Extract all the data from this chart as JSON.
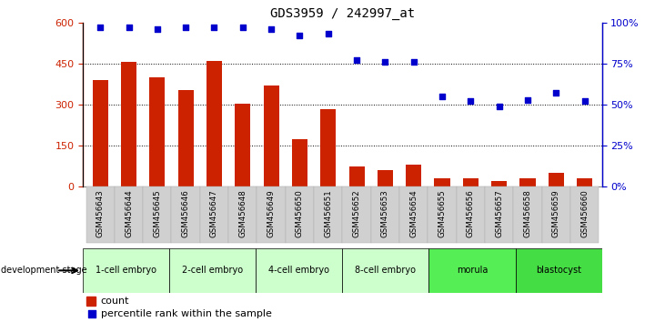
{
  "title": "GDS3959 / 242997_at",
  "samples": [
    "GSM456643",
    "GSM456644",
    "GSM456645",
    "GSM456646",
    "GSM456647",
    "GSM456648",
    "GSM456649",
    "GSM456650",
    "GSM456651",
    "GSM456652",
    "GSM456653",
    "GSM456654",
    "GSM456655",
    "GSM456656",
    "GSM456657",
    "GSM456658",
    "GSM456659",
    "GSM456660"
  ],
  "counts": [
    390,
    455,
    400,
    355,
    460,
    305,
    370,
    175,
    285,
    75,
    60,
    80,
    30,
    30,
    20,
    30,
    50,
    30
  ],
  "percentiles": [
    97,
    97,
    96,
    97,
    97,
    97,
    96,
    92,
    93,
    77,
    76,
    76,
    55,
    52,
    49,
    53,
    57,
    52
  ],
  "bar_color": "#cc2200",
  "dot_color": "#0000cc",
  "ylim_left": [
    0,
    600
  ],
  "ylim_right": [
    0,
    100
  ],
  "yticks_left": [
    0,
    150,
    300,
    450,
    600
  ],
  "yticks_right": [
    0,
    25,
    50,
    75,
    100
  ],
  "ytick_labels_left": [
    "0",
    "150",
    "300",
    "450",
    "600"
  ],
  "ytick_labels_right": [
    "0%",
    "25%",
    "50%",
    "75%",
    "100%"
  ],
  "stages": [
    {
      "label": "1-cell embryo",
      "start": 0,
      "end": 3
    },
    {
      "label": "2-cell embryo",
      "start": 3,
      "end": 6
    },
    {
      "label": "4-cell embryo",
      "start": 6,
      "end": 9
    },
    {
      "label": "8-cell embryo",
      "start": 9,
      "end": 12
    },
    {
      "label": "morula",
      "start": 12,
      "end": 15
    },
    {
      "label": "blastocyst",
      "start": 15,
      "end": 18
    }
  ],
  "stage_colors": [
    "#ccffcc",
    "#ccffcc",
    "#ccffcc",
    "#ccffcc",
    "#55ee55",
    "#44dd44"
  ],
  "dev_stage_label": "development stage",
  "legend_count_label": "count",
  "legend_pct_label": "percentile rank within the sample",
  "xlabel_bg_color": "#d0d0d0",
  "label_sep_color": "#555555"
}
